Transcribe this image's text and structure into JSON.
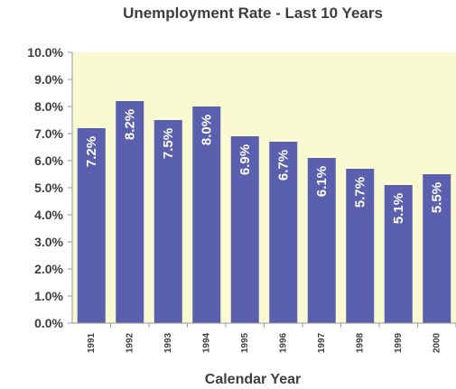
{
  "chart_data": {
    "type": "bar",
    "title": "Unemployment Rate - Last 10 Years",
    "xlabel": "Calendar Year",
    "ylabel": "",
    "categories": [
      "1991",
      "1992",
      "1993",
      "1994",
      "1995",
      "1996",
      "1997",
      "1998",
      "1999",
      "2000"
    ],
    "values": [
      7.2,
      8.2,
      7.5,
      8.0,
      6.9,
      6.7,
      6.1,
      5.7,
      5.1,
      5.5
    ],
    "data_labels": [
      "7.2%",
      "8.2%",
      "7.5%",
      "8.0%",
      "6.9%",
      "6.7%",
      "6.1%",
      "5.7%",
      "5.1%",
      "5.5%"
    ],
    "y_ticks": [
      "0.0%",
      "1.0%",
      "2.0%",
      "3.0%",
      "4.0%",
      "5.0%",
      "6.0%",
      "7.0%",
      "8.0%",
      "9.0%",
      "10.0%"
    ],
    "ylim": [
      0,
      10
    ],
    "grid": false,
    "legend": "none",
    "colors": {
      "bar": "#5a5fae",
      "plot_background": "#fafad2",
      "axis": "#9a9a9a",
      "text": "#3d3d3d",
      "data_label": "#ffffff"
    }
  }
}
